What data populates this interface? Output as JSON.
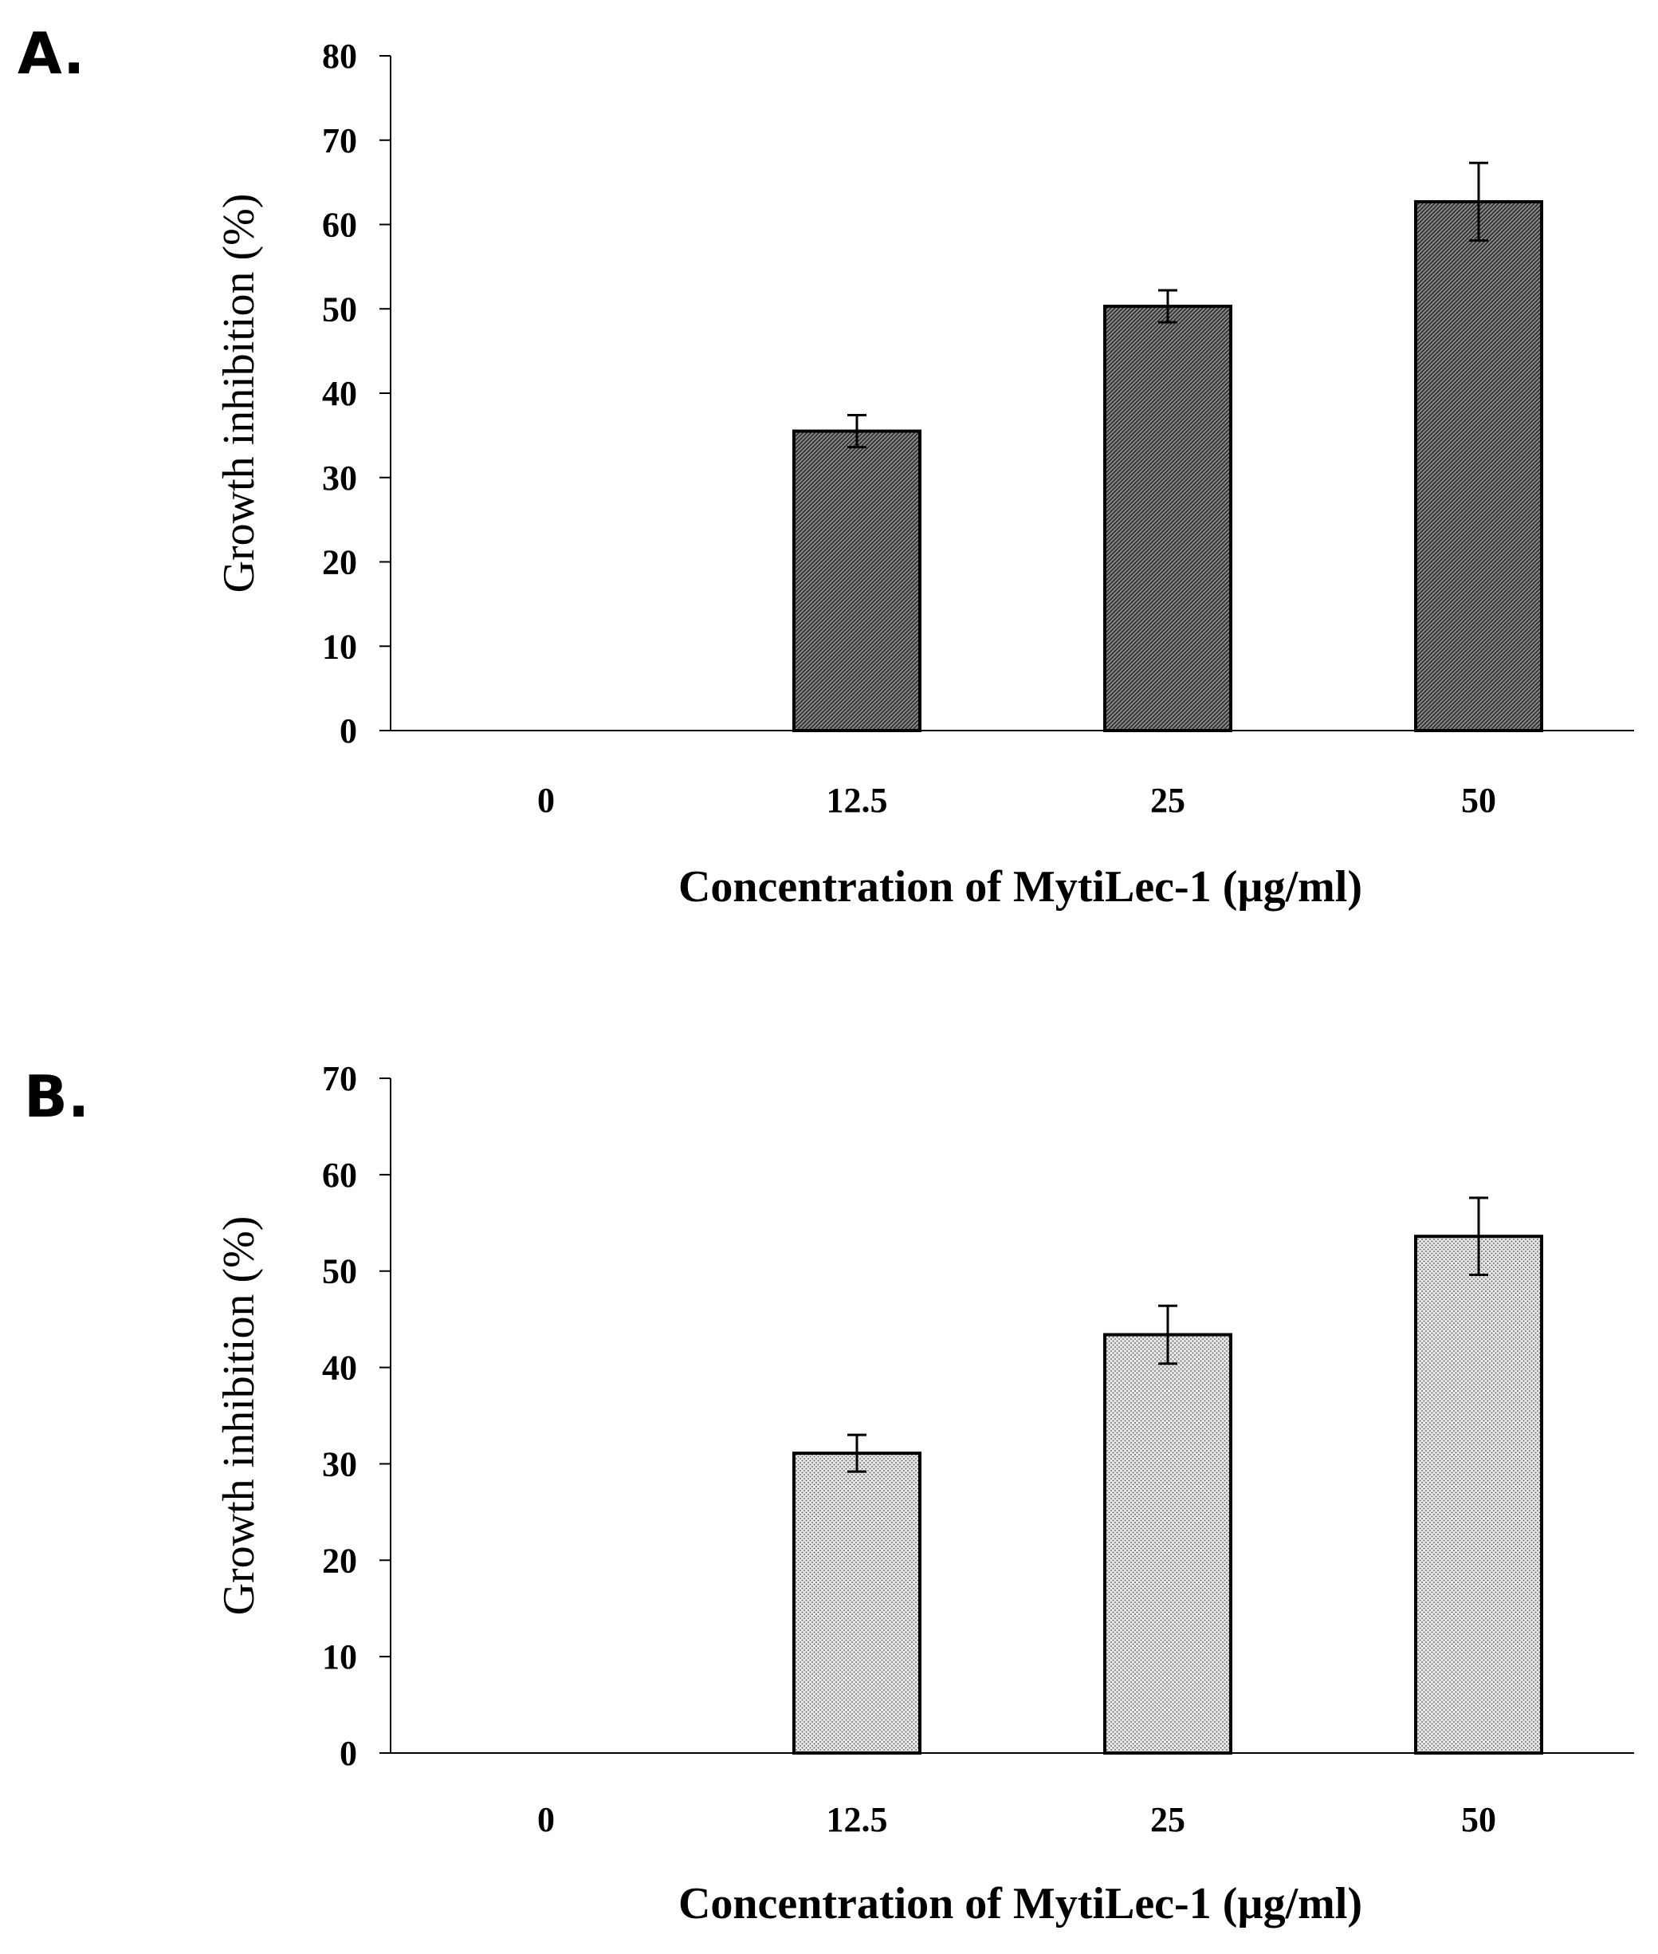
{
  "chart_data": [
    {
      "panel": "A.",
      "type": "bar",
      "categories": [
        "0",
        "12.5",
        "25",
        "50"
      ],
      "values": [
        0,
        35.5,
        50.3,
        62.7
      ],
      "errors": [
        0,
        1.9,
        1.9,
        4.6
      ],
      "xlabel": "Concentration of MytiLec-1 (µg/ml)",
      "ylabel": "Growth inhibition (%)",
      "ylim": [
        0,
        80
      ],
      "yticks": [
        0,
        10,
        20,
        30,
        40,
        50,
        60,
        70,
        80
      ],
      "fill_pattern": "dense-hatch",
      "grid": false
    },
    {
      "panel": "B.",
      "type": "bar",
      "categories": [
        "0",
        "12.5",
        "25",
        "50"
      ],
      "values": [
        0,
        31.1,
        43.4,
        53.6
      ],
      "errors": [
        0,
        1.9,
        3.0,
        4.0
      ],
      "xlabel": "Concentration of MytiLec-1 (µg/ml)",
      "ylabel": "Growth inhibition (%)",
      "ylim": [
        0,
        70
      ],
      "yticks": [
        0,
        10,
        20,
        30,
        40,
        50,
        60,
        70
      ],
      "fill_pattern": "light-dots",
      "grid": false
    }
  ]
}
